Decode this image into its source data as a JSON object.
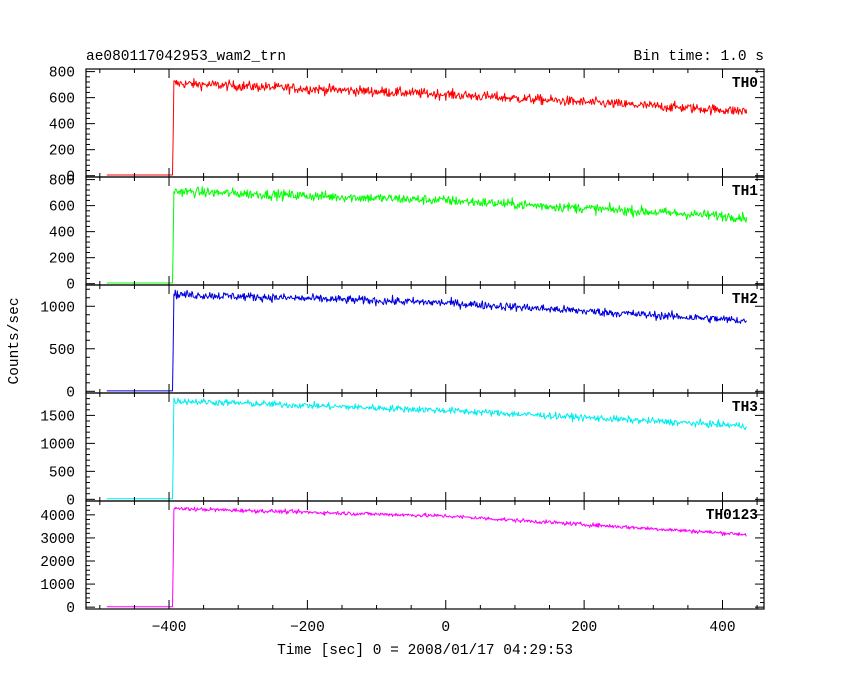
{
  "header": {
    "title": "ae080117042953_wam2_trn",
    "bin_time": "Bin time: 1.0 s"
  },
  "axes": {
    "xlabel": "Time [sec] 0 = 2008/01/17 04:29:53",
    "ylabel": "Counts/sec"
  },
  "chart_data": {
    "type": "line",
    "title": "ae080117042953_wam2_trn",
    "xlabel": "Time [sec] 0 = 2008/01/17 04:29:53",
    "ylabel": "Counts/sec",
    "xlim": [
      -520,
      460
    ],
    "x_ticks": [
      -400,
      -200,
      0,
      200,
      400
    ],
    "x_tick_labels": [
      "−400",
      "−200",
      "0",
      "200",
      "400"
    ],
    "x_start": -490,
    "onset": -395,
    "x_end": 435,
    "panels": [
      {
        "name": "TH0",
        "color": "#ff0000",
        "ylim": [
          -10,
          820
        ],
        "yticks": [
          0,
          200,
          400,
          600,
          800
        ],
        "ytick_labels": [
          "0",
          "200",
          "400",
          "600",
          "800"
        ],
        "pre_level": 5,
        "anchors_x": [
          -393,
          0,
          435
        ],
        "anchors_y": [
          710,
          625,
          495
        ],
        "noise": 35
      },
      {
        "name": "TH1",
        "color": "#00ff00",
        "ylim": [
          -10,
          820
        ],
        "yticks": [
          0,
          200,
          400,
          600,
          800
        ],
        "ytick_labels": [
          "0",
          "200",
          "400",
          "600",
          "800"
        ],
        "pre_level": 5,
        "anchors_x": [
          -393,
          0,
          435
        ],
        "anchors_y": [
          710,
          640,
          510
        ],
        "noise": 35
      },
      {
        "name": "TH2",
        "color": "#0000dd",
        "ylim": [
          -20,
          1250
        ],
        "yticks": [
          0,
          500,
          1000
        ],
        "ytick_labels": [
          "0",
          "500",
          "1000"
        ],
        "pre_level": 5,
        "anchors_x": [
          -393,
          0,
          435
        ],
        "anchors_y": [
          1140,
          1040,
          830
        ],
        "noise": 45
      },
      {
        "name": "TH3",
        "color": "#00eeee",
        "ylim": [
          -30,
          1900
        ],
        "yticks": [
          0,
          500,
          1000,
          1500
        ],
        "ytick_labels": [
          "0",
          "500",
          "1000",
          "1500"
        ],
        "pre_level": 10,
        "anchors_x": [
          -393,
          0,
          435
        ],
        "anchors_y": [
          1760,
          1590,
          1310
        ],
        "noise": 55
      },
      {
        "name": "TH0123",
        "color": "#ff00ff",
        "ylim": [
          -80,
          4600
        ],
        "yticks": [
          0,
          1000,
          2000,
          3000,
          4000
        ],
        "ytick_labels": [
          "0",
          "1000",
          "2000",
          "3000",
          "4000"
        ],
        "pre_level": 20,
        "anchors_x": [
          -393,
          0,
          435
        ],
        "anchors_y": [
          4270,
          3950,
          3150
        ],
        "noise": 80
      }
    ]
  }
}
